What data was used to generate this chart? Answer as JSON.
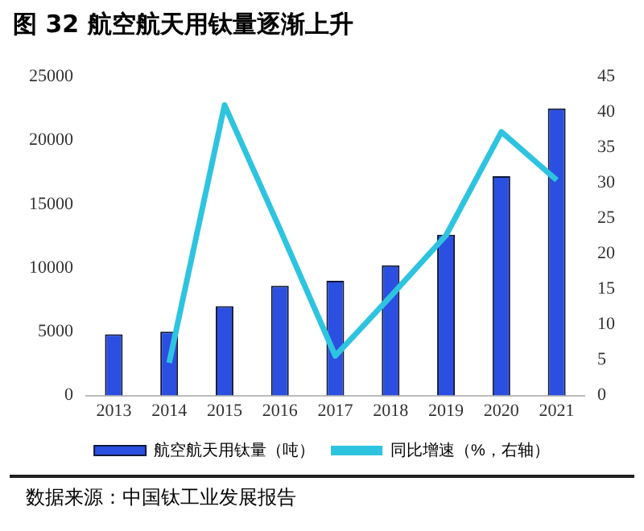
{
  "chart_data": {
    "type": "bar",
    "title": "图 32 航空航天用钛量逐渐上升",
    "categories": [
      "2013",
      "2014",
      "2015",
      "2016",
      "2017",
      "2018",
      "2019",
      "2020",
      "2021"
    ],
    "series": [
      {
        "name": "航空航天用钛量（吨）",
        "color": "#2b4fe0",
        "values": [
          4800,
          5000,
          7000,
          8600,
          9000,
          10200,
          12600,
          17200,
          22500
        ]
      },
      {
        "name": "同比增速（%，右轴）",
        "type": "line",
        "axis": "y2",
        "color": "#2ec4e0",
        "values": [
          null,
          4.6,
          41,
          23.5,
          5.6,
          14,
          22.6,
          37.2,
          30.4
        ]
      }
    ],
    "ylim": [
      0,
      25000
    ],
    "yticks": [
      0,
      5000,
      10000,
      15000,
      20000,
      25000
    ],
    "y2lim": [
      0,
      45
    ],
    "y2ticks": [
      0,
      5,
      10,
      15,
      20,
      25,
      30,
      35,
      40,
      45
    ],
    "grid": false,
    "legend": "bottom",
    "marker": "none",
    "line_style": "solid",
    "annotations": [
      "数据来源：中国钛工业发展报告"
    ]
  }
}
